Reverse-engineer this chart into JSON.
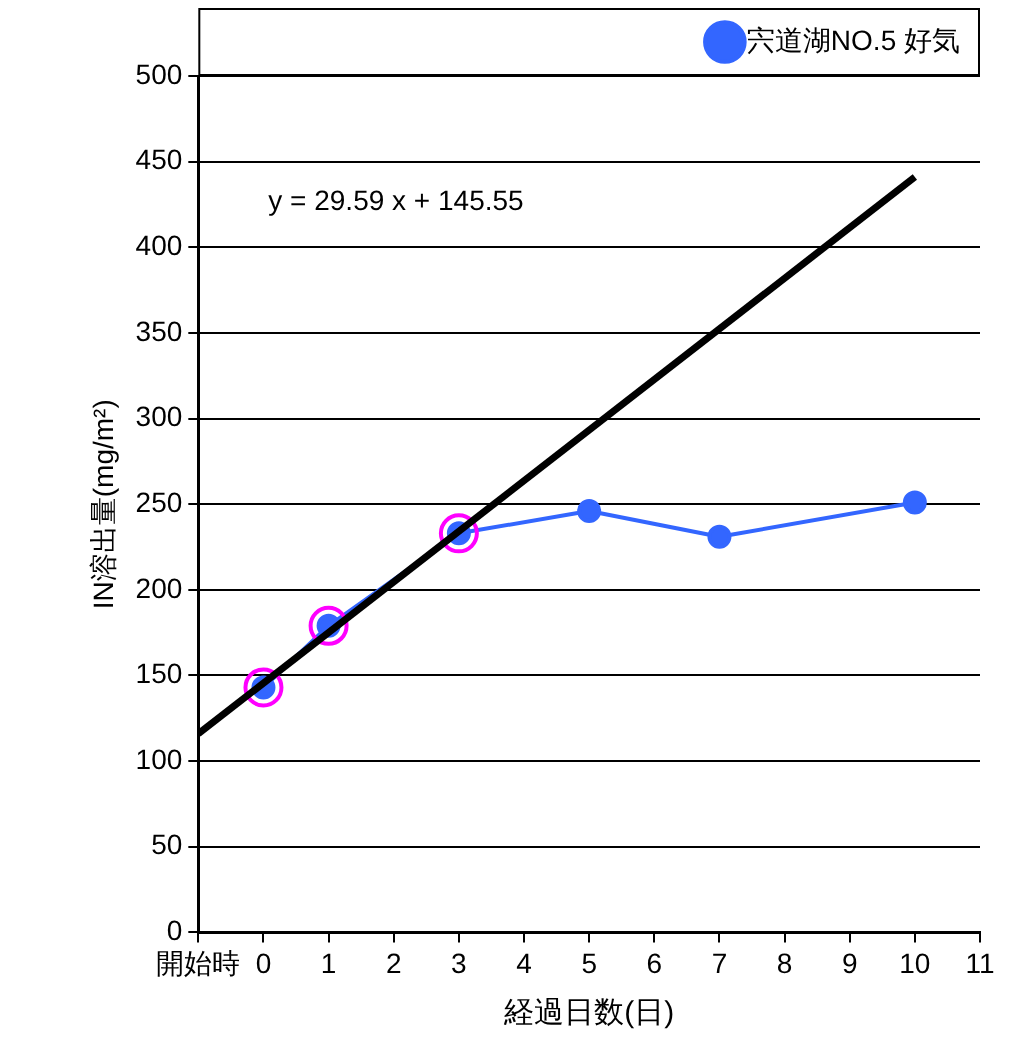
{
  "chart_data": {
    "type": "line",
    "xlabel": "経過日数(日)",
    "ylabel": "IN溶出量(mg/m²)",
    "xlim": [
      -1,
      11
    ],
    "xticks": [
      {
        "value": -1,
        "label": "開始時"
      },
      0,
      1,
      2,
      3,
      4,
      5,
      6,
      7,
      8,
      9,
      10,
      11
    ],
    "ylim": [
      0,
      500
    ],
    "yticks": [
      0,
      50,
      100,
      150,
      200,
      250,
      300,
      350,
      400,
      450,
      500
    ],
    "grid": "y",
    "legend": "top right",
    "marker": "circle",
    "annotations": [
      "y = 29.59 x + 145.55"
    ],
    "series": [
      {
        "name": "宍道湖NO.5 好気",
        "color": "#3366ff",
        "x": [
          0,
          1,
          3,
          5,
          7,
          10
        ],
        "values": [
          143,
          179,
          233,
          246,
          231,
          251
        ]
      },
      {
        "type": "scatter",
        "color": "#ff00ff",
        "x": [
          0,
          1,
          3
        ],
        "values": [
          143,
          179,
          233
        ]
      },
      {
        "color": "#000000",
        "x": [
          -1,
          10
        ],
        "values": [
          116,
          441
        ],
        "marker": "none"
      }
    ]
  }
}
